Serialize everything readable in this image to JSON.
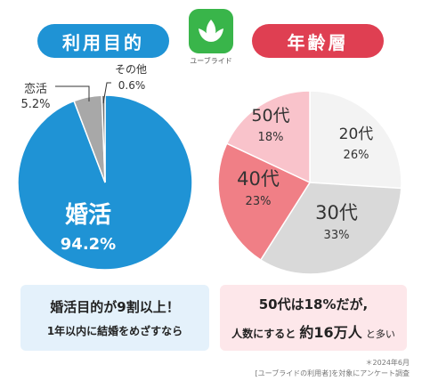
{
  "left_title": "利用目的",
  "right_title": "年齢層",
  "logo_caption": "ユーブライド",
  "chart_data": [
    {
      "type": "pie",
      "title": "利用目的",
      "categories": [
        "婚活",
        "恋活",
        "その他"
      ],
      "values": [
        94.2,
        5.2,
        0.6
      ],
      "value_labels": [
        "94.2%",
        "5.2%",
        "0.6%"
      ],
      "colors": [
        "#1f93d5",
        "#a8a8a8",
        "#6f6f6f"
      ]
    },
    {
      "type": "pie",
      "title": "年齢層",
      "categories": [
        "20代",
        "30代",
        "40代",
        "50代"
      ],
      "values": [
        26,
        33,
        23,
        18
      ],
      "value_labels": [
        "26%",
        "33%",
        "23%",
        "18%"
      ],
      "colors": [
        "#f3f3f3",
        "#d9d9d9",
        "#f07f86",
        "#f9c3cb"
      ]
    }
  ],
  "left_box": {
    "line1": "婚活目的が9割以上！",
    "line2": "1年以内に結婚をめざすなら"
  },
  "right_box": {
    "line1": "50代は18%だが,",
    "line2_a": "人数にすると",
    "line2_b": "約16万人",
    "line2_c": "と多い"
  },
  "footnote": {
    "line1": "＊2024年6月",
    "line2": "[ユーブライドの利用者]を対象にアンケート調査"
  }
}
